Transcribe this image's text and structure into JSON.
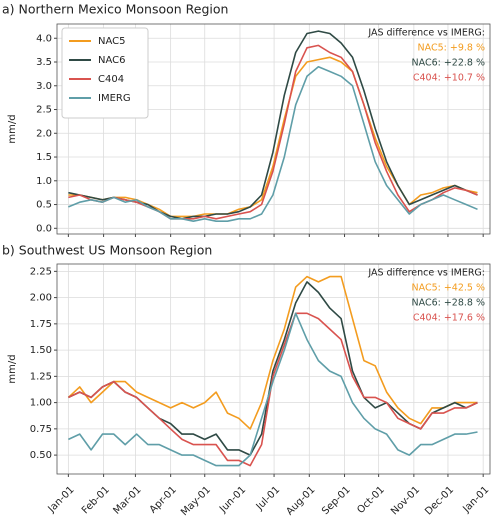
{
  "chart_data": [
    {
      "type": "line",
      "title": "a) Northern Mexico Monsoon Region",
      "ylabel": "mm/d",
      "x": [
        1,
        11,
        21,
        31,
        41,
        51,
        61,
        71,
        81,
        91,
        101,
        111,
        121,
        131,
        141,
        151,
        161,
        171,
        181,
        191,
        201,
        211,
        221,
        231,
        241,
        251,
        261,
        271,
        281,
        291,
        301,
        311,
        321,
        331,
        341,
        351,
        361
      ],
      "xlim": [
        -9,
        372
      ],
      "xticks": [
        1,
        32,
        60,
        91,
        121,
        152,
        182,
        213,
        244,
        274,
        305,
        335,
        366
      ],
      "ylim": [
        -0.12,
        4.3
      ],
      "yticks": [
        {
          "value": 0,
          "label": "0.0"
        },
        0.5,
        {
          "value": 1,
          "label": "1.0"
        },
        1.5,
        {
          "value": 2,
          "label": "2.0"
        },
        2.5,
        {
          "value": 3,
          "label": "3.0"
        },
        3.5,
        {
          "value": 4,
          "label": "4.0"
        }
      ],
      "grid": true,
      "legend": "upper left",
      "annotations": [
        {
          "text": "JAS difference vs IMERG:",
          "color": "#222222"
        },
        {
          "text": "NAC5: +9.8 %",
          "color": "#f39c1f"
        },
        {
          "text": "NAC6: +22.8 %",
          "color": "#2f4a45"
        },
        {
          "text": "C404: +10.7 %",
          "color": "#d9534f"
        }
      ],
      "series": [
        {
          "name": "NAC5",
          "color": "#f39c1f",
          "values": [
            0.7,
            0.7,
            0.65,
            0.6,
            0.65,
            0.65,
            0.6,
            0.5,
            0.4,
            0.25,
            0.25,
            0.25,
            0.3,
            0.3,
            0.3,
            0.4,
            0.45,
            0.6,
            1.3,
            2.3,
            3.2,
            3.5,
            3.55,
            3.6,
            3.5,
            3.3,
            2.6,
            1.9,
            1.3,
            0.9,
            0.5,
            0.7,
            0.75,
            0.85,
            0.9,
            0.8,
            0.75
          ]
        },
        {
          "name": "NAC6",
          "color": "#2f4a45",
          "values": [
            0.75,
            0.7,
            0.65,
            0.6,
            0.65,
            0.6,
            0.55,
            0.5,
            0.35,
            0.25,
            0.2,
            0.25,
            0.25,
            0.3,
            0.3,
            0.35,
            0.45,
            0.7,
            1.6,
            2.8,
            3.7,
            4.1,
            4.15,
            4.1,
            3.9,
            3.6,
            2.9,
            2.1,
            1.4,
            0.9,
            0.5,
            0.6,
            0.7,
            0.8,
            0.9,
            0.8,
            0.7
          ]
        },
        {
          "name": "C404",
          "color": "#d9534f",
          "values": [
            0.65,
            0.7,
            0.6,
            0.55,
            0.65,
            0.6,
            0.55,
            0.45,
            0.35,
            0.2,
            0.2,
            0.2,
            0.25,
            0.2,
            0.25,
            0.3,
            0.35,
            0.5,
            1.2,
            2.2,
            3.3,
            3.8,
            3.85,
            3.7,
            3.6,
            3.3,
            2.6,
            1.8,
            1.2,
            0.7,
            0.35,
            0.5,
            0.6,
            0.75,
            0.85,
            0.8,
            0.7
          ]
        },
        {
          "name": "IMERG",
          "color": "#5f9ea8",
          "values": [
            0.45,
            0.55,
            0.6,
            0.55,
            0.65,
            0.55,
            0.6,
            0.45,
            0.35,
            0.2,
            0.2,
            0.15,
            0.2,
            0.15,
            0.15,
            0.2,
            0.2,
            0.3,
            0.7,
            1.5,
            2.6,
            3.2,
            3.4,
            3.3,
            3.2,
            3.0,
            2.2,
            1.4,
            0.9,
            0.6,
            0.3,
            0.5,
            0.6,
            0.7,
            0.6,
            0.5,
            0.4
          ]
        }
      ]
    },
    {
      "type": "line",
      "title": "b) Southwest US Monsoon Region",
      "ylabel": "mm/d",
      "x": [
        1,
        11,
        21,
        31,
        41,
        51,
        61,
        71,
        81,
        91,
        101,
        111,
        121,
        131,
        141,
        151,
        161,
        171,
        181,
        191,
        201,
        211,
        221,
        231,
        241,
        251,
        261,
        271,
        281,
        291,
        301,
        311,
        321,
        331,
        341,
        351,
        361
      ],
      "xlim": [
        -9,
        372
      ],
      "xticks": [
        {
          "value": 1,
          "label": "Jan-01"
        },
        {
          "value": 32,
          "label": "Feb-01"
        },
        {
          "value": 60,
          "label": "Mar-01"
        },
        {
          "value": 91,
          "label": "Apr-01"
        },
        {
          "value": 121,
          "label": "May-01"
        },
        {
          "value": 152,
          "label": "Jun-01"
        },
        {
          "value": 182,
          "label": "Jul-01"
        },
        {
          "value": 213,
          "label": "Aug-01"
        },
        {
          "value": 244,
          "label": "Sep-01"
        },
        {
          "value": 274,
          "label": "Oct-01"
        },
        {
          "value": 305,
          "label": "Nov-01"
        },
        {
          "value": 335,
          "label": "Dec-01"
        },
        {
          "value": 366,
          "label": "Jan-01"
        }
      ],
      "ylim": [
        0.32,
        2.32
      ],
      "yticks": [
        {
          "value": 0.5,
          "label": "0.50"
        },
        0.75,
        {
          "value": 1,
          "label": "1.00"
        },
        1.25,
        {
          "value": 1.5,
          "label": "1.50"
        },
        1.75,
        {
          "value": 2,
          "label": "2.00"
        },
        2.25
      ],
      "grid": true,
      "annotations": [
        {
          "text": "JAS difference vs IMERG:",
          "color": "#222222"
        },
        {
          "text": "NAC5: +42.5 %",
          "color": "#f39c1f"
        },
        {
          "text": "NAC6: +28.8 %",
          "color": "#2f4a45"
        },
        {
          "text": "C404: +17.6 %",
          "color": "#d9534f"
        }
      ],
      "series": [
        {
          "name": "NAC5",
          "color": "#f39c1f",
          "values": [
            1.05,
            1.15,
            1.0,
            1.1,
            1.2,
            1.2,
            1.1,
            1.05,
            1.0,
            0.95,
            1.0,
            0.95,
            1.0,
            1.1,
            0.9,
            0.85,
            0.75,
            1.0,
            1.4,
            1.7,
            2.1,
            2.2,
            2.15,
            2.2,
            2.2,
            1.8,
            1.4,
            1.35,
            1.1,
            0.95,
            0.85,
            0.8,
            0.95,
            0.95,
            1.0,
            1.0,
            1.0
          ]
        },
        {
          "name": "NAC6",
          "color": "#2f4a45",
          "values": [
            1.05,
            1.1,
            1.05,
            1.15,
            1.2,
            1.1,
            1.05,
            0.95,
            0.85,
            0.8,
            0.7,
            0.7,
            0.65,
            0.7,
            0.55,
            0.55,
            0.5,
            0.7,
            1.3,
            1.6,
            1.95,
            2.15,
            2.05,
            1.9,
            1.8,
            1.3,
            1.05,
            0.95,
            1.0,
            0.9,
            0.8,
            0.75,
            0.9,
            0.95,
            1.0,
            0.95,
            1.0
          ]
        },
        {
          "name": "C404",
          "color": "#d9534f",
          "values": [
            1.05,
            1.1,
            1.05,
            1.15,
            1.2,
            1.1,
            1.05,
            0.95,
            0.85,
            0.75,
            0.65,
            0.6,
            0.6,
            0.6,
            0.45,
            0.45,
            0.4,
            0.6,
            1.25,
            1.55,
            1.85,
            1.85,
            1.8,
            1.7,
            1.6,
            1.25,
            1.05,
            1.05,
            1.0,
            0.85,
            0.8,
            0.75,
            0.9,
            0.9,
            0.95,
            0.95,
            1.0
          ]
        },
        {
          "name": "IMERG",
          "color": "#5f9ea8",
          "values": [
            0.65,
            0.7,
            0.55,
            0.7,
            0.7,
            0.6,
            0.7,
            0.6,
            0.6,
            0.55,
            0.5,
            0.5,
            0.45,
            0.4,
            0.4,
            0.4,
            0.5,
            0.85,
            1.2,
            1.5,
            1.85,
            1.6,
            1.4,
            1.3,
            1.25,
            1.0,
            0.85,
            0.75,
            0.7,
            0.55,
            0.5,
            0.6,
            0.6,
            0.65,
            0.7,
            0.7,
            0.72
          ]
        }
      ]
    }
  ]
}
